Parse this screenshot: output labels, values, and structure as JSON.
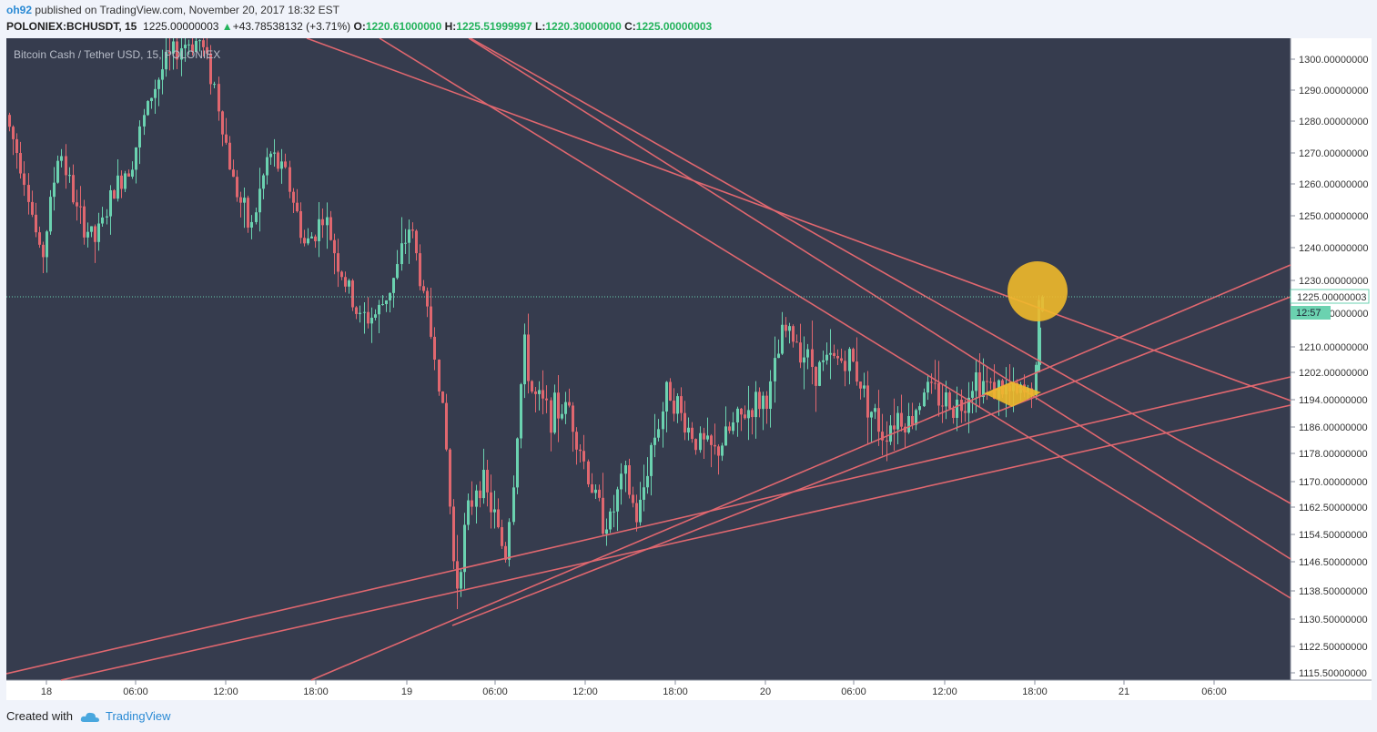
{
  "header": {
    "author": "oh92",
    "published_text": "published on TradingView.com, November 20, 2017 18:32 EST",
    "symbol": "POLONIEX:BCHUSDT, 15",
    "last": "1225.00000003",
    "change_arrow": "▲",
    "change": "+43.78538132 (+3.71%)",
    "o_label": "O:",
    "o_value": "1220.61000000",
    "h_label": "H:",
    "h_value": "1225.51999997",
    "l_label": "L:",
    "l_value": "1220.30000000",
    "c_label": "C:",
    "c_value": "1225.00000003"
  },
  "chart_data": {
    "type": "candlestick",
    "title": "Bitcoin Cash / Tether USD, 15, POLONIEX",
    "x_ticks": [
      "18",
      "06:00",
      "12:00",
      "18:00",
      "19",
      "06:00",
      "12:00",
      "18:00",
      "20",
      "06:00",
      "12:00",
      "18:00",
      "21",
      "06:00"
    ],
    "y_ticks": [
      "1300.00000000",
      "1290.00000000",
      "1280.00000000",
      "1270.00000000",
      "1260.00000000",
      "1250.00000000",
      "1240.00000000",
      "1230.00000000",
      "1220.00000000",
      "1210.00000000",
      "1202.00000000",
      "1194.00000000",
      "1186.00000000",
      "1178.00000000",
      "1170.00000000",
      "1162.50000000",
      "1154.50000000",
      "1146.50000000",
      "1138.50000000",
      "1130.50000000",
      "1122.50000000",
      "1115.50000000"
    ],
    "last_price_label": "1225.00000003",
    "countdown_label": "12:57",
    "grid": false,
    "colors": {
      "background": "#363c4e",
      "up": "#6bd2b0",
      "down": "#e0676f",
      "trendline": "#e0676f",
      "last_price_line": "#6bd2b0",
      "highlight": "#f0b92b"
    }
  },
  "footer": {
    "created_with": "Created with",
    "brand": "TradingView"
  }
}
